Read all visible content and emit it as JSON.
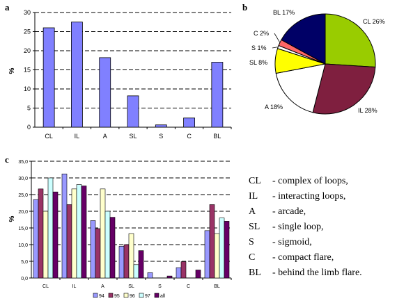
{
  "panels": {
    "a": "a",
    "b": "b",
    "c": "c"
  },
  "abbreviations": [
    {
      "code": "CL",
      "text": "- complex of loops,"
    },
    {
      "code": "IL",
      "text": "- interacting loops,"
    },
    {
      "code": "A",
      "text": "- arcade,"
    },
    {
      "code": "SL",
      "text": "- single loop,"
    },
    {
      "code": "S",
      "text": "- sigmoid,"
    },
    {
      "code": "C",
      "text": "- compact flare,"
    },
    {
      "code": "BL",
      "text": "- behind the limb flare."
    }
  ],
  "chart_data": [
    {
      "type": "bar",
      "panel": "a",
      "categories": [
        "CL",
        "IL",
        "A",
        "SL",
        "S",
        "C",
        "BL"
      ],
      "values": [
        26,
        27.5,
        18.2,
        8.2,
        0.6,
        2.4,
        17
      ],
      "ylabel": "%",
      "ylim": [
        0,
        30
      ],
      "yticks": [
        0,
        5,
        10,
        15,
        20,
        25,
        30
      ],
      "ytick_labels": [
        "0",
        "5",
        "10",
        "15",
        "20",
        "25",
        "30"
      ],
      "grid": "dashed horizontal",
      "color": "#8080ff"
    },
    {
      "type": "pie",
      "panel": "b",
      "labels": [
        "CL 26%",
        "IL 28%",
        "A 18%",
        "SL 8%",
        "S 1%",
        "C 2%",
        "BL 17%"
      ],
      "values": [
        26,
        28,
        18,
        8,
        1,
        2,
        17
      ],
      "colors": [
        "#99cc00",
        "#7f1f3f",
        "#ffffff",
        "#ffff00",
        "#ffffff",
        "#ff6666",
        "#000066"
      ]
    },
    {
      "type": "bar",
      "panel": "c",
      "categories": [
        "CL",
        "IL",
        "A",
        "SL",
        "S",
        "C",
        "BL"
      ],
      "series": [
        {
          "name": "94",
          "color": "#9999ff",
          "values": [
            23.5,
            31.2,
            17.2,
            9.5,
            1.6,
            3.1,
            14.2
          ]
        },
        {
          "name": "95",
          "color": "#993366",
          "values": [
            26.7,
            22,
            14.8,
            10,
            0,
            4.9,
            22
          ]
        },
        {
          "name": "96",
          "color": "#ffffcc",
          "values": [
            20,
            26.7,
            26.7,
            13.3,
            0,
            0,
            13.3
          ]
        },
        {
          "name": "97",
          "color": "#ccffff",
          "values": [
            30,
            28,
            20,
            4,
            0,
            0,
            18
          ]
        },
        {
          "name": "all",
          "color": "#660066",
          "values": [
            25.8,
            27.6,
            18.2,
            8.2,
            0.6,
            2.4,
            17
          ]
        }
      ],
      "ylabel": "%",
      "ylim": [
        0,
        35
      ],
      "yticks": [
        0,
        5,
        10,
        15,
        20,
        25,
        30,
        35
      ],
      "ytick_labels": [
        "0,0",
        "5,0",
        "10,0",
        "15,0",
        "20,0",
        "25,0",
        "30,0",
        "35,0"
      ],
      "grid": "dashed horizontal",
      "legend": "bottom"
    }
  ]
}
